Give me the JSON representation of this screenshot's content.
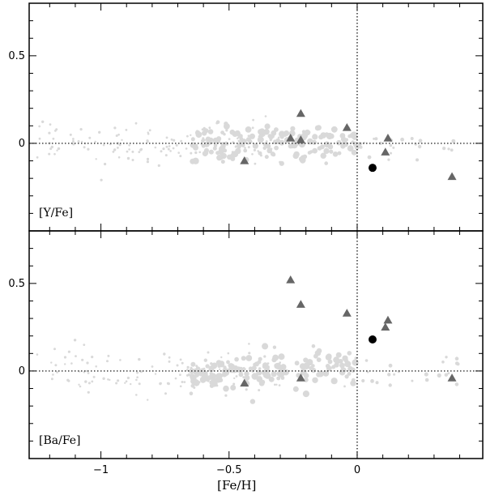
{
  "chart_data": {
    "type": "scatter",
    "xlabel": "[Fe/H]",
    "xlim": [
      -1.28,
      0.49
    ],
    "x_ticks": [
      -1,
      -0.5,
      0
    ],
    "x_tick_labels": [
      "−1",
      "−0.5",
      "0"
    ],
    "colors": {
      "background_stars": "#d9d9d9",
      "triangles": "#666666",
      "target": "#000000",
      "axes": "#000000"
    },
    "panels": [
      {
        "label": "[Y/Fe]",
        "ylim": [
          -0.5,
          0.8
        ],
        "y_ticks": [
          0,
          0.5
        ],
        "y_tick_labels": [
          "0",
          "0.5"
        ],
        "reference_lines": {
          "x": 0,
          "y": 0
        },
        "series": [
          {
            "marker": "triangle",
            "points": [
              {
                "x": -0.44,
                "y": -0.1
              },
              {
                "x": -0.22,
                "y": 0.17
              },
              {
                "x": -0.26,
                "y": 0.03
              },
              {
                "x": -0.22,
                "y": 0.02
              },
              {
                "x": -0.04,
                "y": 0.09
              },
              {
                "x": 0.12,
                "y": 0.03
              },
              {
                "x": 0.11,
                "y": -0.05
              },
              {
                "x": 0.37,
                "y": -0.19
              }
            ]
          },
          {
            "marker": "filled-circle",
            "points": [
              {
                "x": 0.06,
                "y": -0.14
              }
            ]
          }
        ]
      },
      {
        "label": "[Ba/Fe]",
        "ylim": [
          -0.5,
          0.8
        ],
        "y_ticks": [
          0,
          0.5
        ],
        "y_tick_labels": [
          "0",
          "0.5"
        ],
        "reference_lines": {
          "x": 0,
          "y": 0
        },
        "series": [
          {
            "marker": "triangle",
            "points": [
              {
                "x": -0.44,
                "y": -0.07
              },
              {
                "x": -0.26,
                "y": 0.52
              },
              {
                "x": -0.22,
                "y": 0.38
              },
              {
                "x": -0.22,
                "y": -0.04
              },
              {
                "x": -0.04,
                "y": 0.33
              },
              {
                "x": 0.12,
                "y": 0.29
              },
              {
                "x": 0.11,
                "y": 0.25
              },
              {
                "x": 0.37,
                "y": -0.04
              }
            ]
          },
          {
            "marker": "filled-circle",
            "points": [
              {
                "x": 0.06,
                "y": 0.18
              }
            ]
          }
        ]
      }
    ]
  }
}
